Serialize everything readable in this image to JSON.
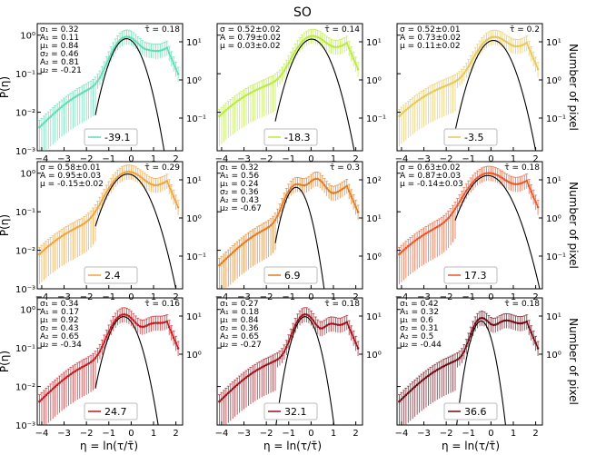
{
  "figure": {
    "title": "SO",
    "xlabel": "η = ln(τ/τ̄)",
    "ylabel_left": "P(η)",
    "ylabel_right": "Number of pixel"
  },
  "chart_data": {
    "type": "scatter",
    "x_ticks": [
      -4,
      -3,
      -2,
      -1,
      0,
      1,
      2
    ],
    "y_ticks_left": [
      "10⁻³",
      "10⁻²",
      "10⁻¹",
      "10⁰"
    ],
    "panels": [
      {
        "id": "p1",
        "color": "#5fdcb0",
        "legend": "-39.1",
        "tau": "τ̄ = 0.18",
        "ann": [
          "σ₁ = 0.32",
          "A₁ = 0.11",
          "μ₁ = 0.84",
          "σ₂ = 0.46",
          "A₂ = 0.81",
          "μ₂ = -0.21"
        ],
        "right_ticks": [
          "10¹",
          "10⁰",
          "10⁻¹"
        ],
        "fit": {
          "mu": -0.21,
          "sigma": 0.46,
          "A": 0.81
        }
      },
      {
        "id": "p2",
        "color": "#b8ea3e",
        "legend": "-18.3",
        "tau": "τ̄ = 0.14",
        "ann": [
          "σ = 0.52±0.02",
          "A = 0.79±0.02",
          "μ = 0.03±0.02"
        ],
        "right_ticks": [
          "10¹",
          "10⁰",
          "10⁻¹"
        ],
        "fit": {
          "mu": 0.03,
          "sigma": 0.52,
          "A": 0.79
        }
      },
      {
        "id": "p3",
        "color": "#e6c75a",
        "legend": "-3.5",
        "tau": "τ̄ = 0.2",
        "ann": [
          "σ = 0.52±0.01",
          "A = 0.73±0.02",
          "μ = 0.11±0.02"
        ],
        "right_ticks": [
          "10¹",
          "10⁰",
          "10⁻¹"
        ],
        "fit": {
          "mu": 0.11,
          "sigma": 0.52,
          "A": 0.73
        }
      },
      {
        "id": "p4",
        "color": "#f0a23a",
        "legend": "2.4",
        "tau": "τ̄ = 0.29",
        "ann": [
          "σ = 0.58±0.01",
          "A = 0.95±0.03",
          "μ = -0.15±0.02"
        ],
        "right_ticks": [
          "10¹",
          "10⁰",
          "10⁻¹"
        ],
        "fit": {
          "mu": -0.15,
          "sigma": 0.58,
          "A": 0.95
        }
      },
      {
        "id": "p5",
        "color": "#e07a20",
        "legend": "6.9",
        "tau": "τ̄ = 0.3",
        "ann": [
          "σ₁ = 0.32",
          "A₁ = 0.56",
          "μ₁ = 0.24",
          "σ₂ = 0.36",
          "A₂ = 0.43",
          "μ₂ = -0.67"
        ],
        "right_ticks": [
          "10²",
          "10¹",
          "10⁰"
        ],
        "fit": {
          "mu": -0.67,
          "sigma": 0.36,
          "A": 0.43
        }
      },
      {
        "id": "p6",
        "color": "#e8542a",
        "legend": "17.3",
        "tau": "τ̄ = 0.18",
        "ann": [
          "σ = 0.63±0.02",
          "A = 0.87±0.03",
          "μ = -0.14±0.03"
        ],
        "right_ticks": [
          "10¹",
          "10⁰",
          "10⁻¹"
        ],
        "fit": {
          "mu": -0.14,
          "sigma": 0.63,
          "A": 0.87
        }
      },
      {
        "id": "p7",
        "color": "#c4161c",
        "legend": "24.7",
        "tau": "τ̄ = 0.16",
        "ann": [
          "σ₁ = 0.34",
          "A₁ = 0.17",
          "μ₁ = 0.92",
          "σ₂ = 0.43",
          "A₂ = 0.65",
          "μ₂ = -0.34"
        ],
        "right_ticks": [
          "10¹",
          "10⁰"
        ],
        "fit": {
          "mu": -0.34,
          "sigma": 0.43,
          "A": 0.65
        }
      },
      {
        "id": "p8",
        "color": "#9b0f17",
        "legend": "32.1",
        "tau": "τ̄ = 0.18",
        "ann": [
          "σ₁ = 0.27",
          "A₁ = 0.18",
          "μ₁ = 0.84",
          "σ₂ = 0.36",
          "A₂ = 0.65",
          "μ₂ = -0.27"
        ],
        "right_ticks": [
          "10¹",
          "10⁰"
        ],
        "fit": {
          "mu": -0.27,
          "sigma": 0.36,
          "A": 0.65
        }
      },
      {
        "id": "p9",
        "color": "#6b0a12",
        "legend": "36.6",
        "tau": "τ̄ = 0.18",
        "ann": [
          "σ₁ = 0.42",
          "A₁ = 0.32",
          "μ₁ = 0.6",
          "σ₂ = 0.31",
          "A₂ = 0.5",
          "μ₂ = -0.44"
        ],
        "right_ticks": [
          "10¹",
          "10⁰"
        ],
        "fit": {
          "mu": -0.44,
          "sigma": 0.31,
          "A": 0.5
        }
      }
    ]
  }
}
